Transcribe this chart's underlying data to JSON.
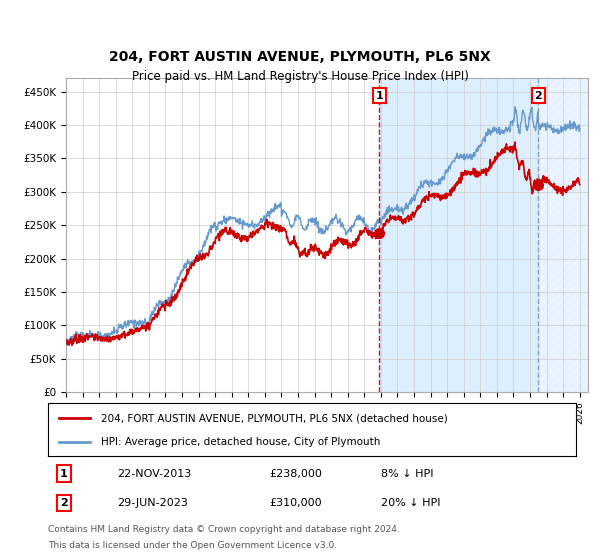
{
  "title": "204, FORT AUSTIN AVENUE, PLYMOUTH, PL6 5NX",
  "subtitle": "Price paid vs. HM Land Registry's House Price Index (HPI)",
  "ylim": [
    0,
    470000
  ],
  "xlim_start": 1995.0,
  "xlim_end": 2026.5,
  "yticks": [
    0,
    50000,
    100000,
    150000,
    200000,
    250000,
    300000,
    350000,
    400000,
    450000
  ],
  "ytick_labels": [
    "£0",
    "£50K",
    "£100K",
    "£150K",
    "£200K",
    "£250K",
    "£300K",
    "£350K",
    "£400K",
    "£450K"
  ],
  "xtick_years": [
    1995,
    1996,
    1997,
    1998,
    1999,
    2000,
    2001,
    2002,
    2003,
    2004,
    2005,
    2006,
    2007,
    2008,
    2009,
    2010,
    2011,
    2012,
    2013,
    2014,
    2015,
    2016,
    2017,
    2018,
    2019,
    2020,
    2021,
    2022,
    2023,
    2024,
    2025,
    2026
  ],
  "hpi_color": "#6699cc",
  "price_color": "#cc0000",
  "dot_color": "#cc0000",
  "event1_x": 2013.9,
  "event1_y": 238000,
  "event1_label": "1",
  "event1_date": "22-NOV-2013",
  "event1_price": "£238,000",
  "event1_hpi": "8% ↓ HPI",
  "event2_x": 2023.5,
  "event2_y": 310000,
  "event2_label": "2",
  "event2_date": "29-JUN-2023",
  "event2_price": "£310,000",
  "event2_hpi": "20% ↓ HPI",
  "legend_line1": "204, FORT AUSTIN AVENUE, PLYMOUTH, PL6 5NX (detached house)",
  "legend_line2": "HPI: Average price, detached house, City of Plymouth",
  "footer1": "Contains HM Land Registry data © Crown copyright and database right 2024.",
  "footer2": "This data is licensed under the Open Government Licence v3.0.",
  "bg_color": "#ffffff",
  "grid_color": "#cccccc",
  "shade_color": "#ddeeff",
  "hatch_color": "#aabbcc"
}
